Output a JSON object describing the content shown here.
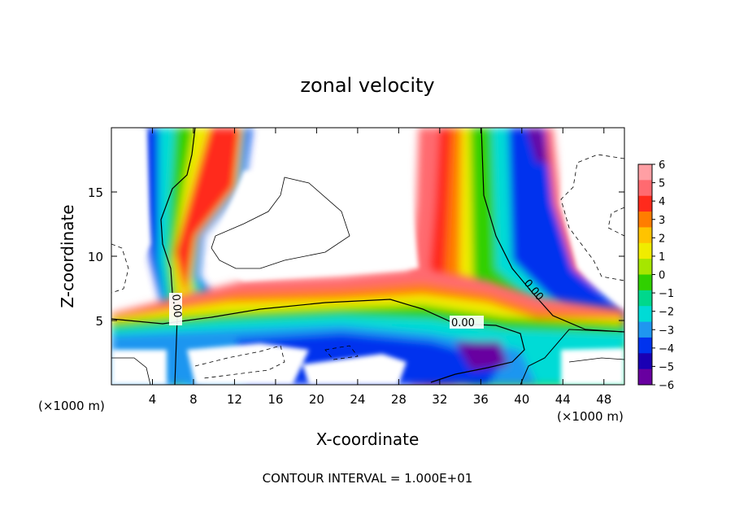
{
  "chart_data": {
    "type": "heatmap",
    "title": "zonal velocity",
    "xlabel": "X-coordinate",
    "ylabel": "Z-coordinate",
    "x_unit_left": "(×1000 m)",
    "x_unit_right": "(×1000 m)",
    "footer": "CONTOUR INTERVAL = 1.000E+01",
    "xlim": [
      0,
      50
    ],
    "ylim": [
      0,
      20
    ],
    "x_ticks": [
      "4",
      "8",
      "12",
      "16",
      "20",
      "24",
      "28",
      "32",
      "36",
      "40",
      "44",
      "48"
    ],
    "x_tick_values": [
      4,
      8,
      12,
      16,
      20,
      24,
      28,
      32,
      36,
      40,
      44,
      48
    ],
    "y_ticks": [
      "5",
      "10",
      "15"
    ],
    "y_tick_values": [
      5,
      10,
      15
    ],
    "colorbar": {
      "labels": [
        "6",
        "5",
        "4",
        "3",
        "2",
        "1",
        "0",
        "−1",
        "−2",
        "−3",
        "−4",
        "−5",
        "−6"
      ],
      "values": [
        6,
        5,
        4,
        3,
        2,
        1,
        0,
        -1,
        -2,
        -3,
        -4,
        -5,
        -6
      ],
      "colors": [
        "#ff9fa4",
        "#ff6a70",
        "#ff2a1c",
        "#ff7d00",
        "#ffc300",
        "#f0ec00",
        "#a6e600",
        "#30d000",
        "#00d88c",
        "#00dbd6",
        "#1f96f0",
        "#0033ee",
        "#1a00b4",
        "#6800a0"
      ]
    },
    "contour_labels": [
      "0.00",
      "0.00",
      "0.00"
    ]
  }
}
